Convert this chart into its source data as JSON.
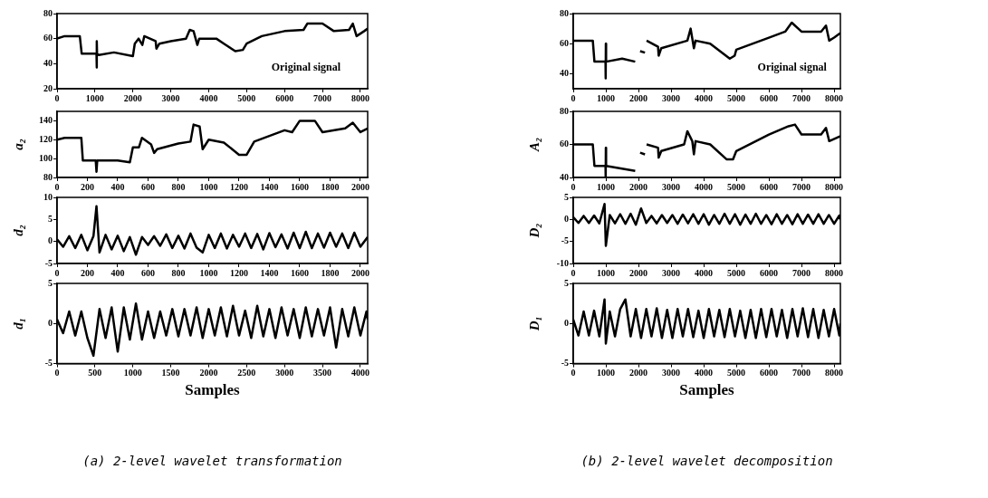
{
  "chart_data": [
    {
      "type": "line",
      "color": "#000000",
      "annotations": [
        "Original signal"
      ],
      "xlim": [
        0,
        8192
      ],
      "ylim": [
        20,
        80
      ],
      "xticks": [
        0,
        1000,
        2000,
        3000,
        4000,
        5000,
        6000,
        7000,
        8000
      ],
      "yticks": [
        20,
        40,
        60,
        80
      ],
      "x": [
        0,
        200,
        600,
        650,
        1000,
        1040,
        1045,
        1050,
        1055,
        1100,
        1500,
        2000,
        2050,
        2150,
        2250,
        2300,
        2600,
        2620,
        2700,
        3000,
        3400,
        3500,
        3600,
        3700,
        3750,
        4200,
        4400,
        4700,
        4900,
        5000,
        5400,
        6000,
        6500,
        6600,
        7000,
        7300,
        7700,
        7800,
        7900,
        8100,
        8192
      ],
      "values": [
        60,
        62,
        62,
        48,
        48,
        48,
        37,
        58,
        48,
        47,
        49,
        46,
        56,
        60,
        55,
        62,
        58,
        52,
        56,
        58,
        60,
        67,
        66,
        55,
        60,
        60,
        56,
        50,
        51,
        56,
        62,
        66,
        67,
        72,
        72,
        66,
        67,
        72,
        62,
        66,
        68
      ]
    },
    {
      "type": "line",
      "color": "#000000",
      "ylabel": "a₂",
      "xlim": [
        0,
        2048
      ],
      "ylim": [
        80,
        150
      ],
      "xticks": [
        0,
        200,
        400,
        600,
        800,
        1000,
        1200,
        1400,
        1600,
        1800,
        2000
      ],
      "yticks": [
        80,
        100,
        120,
        140
      ],
      "x": [
        0,
        50,
        160,
        170,
        255,
        260,
        265,
        400,
        480,
        500,
        540,
        560,
        620,
        640,
        660,
        800,
        880,
        900,
        940,
        960,
        1000,
        1100,
        1200,
        1250,
        1300,
        1500,
        1550,
        1600,
        1700,
        1750,
        1900,
        1950,
        2000,
        2048
      ],
      "values": [
        120,
        122,
        122,
        98,
        98,
        86,
        98,
        98,
        96,
        112,
        112,
        122,
        115,
        106,
        110,
        116,
        118,
        136,
        134,
        110,
        120,
        117,
        104,
        104,
        118,
        130,
        128,
        140,
        140,
        128,
        132,
        138,
        128,
        132
      ]
    },
    {
      "type": "line",
      "color": "#000000",
      "ylabel": "d₂",
      "xlim": [
        0,
        2048
      ],
      "ylim": [
        -5,
        10
      ],
      "xticks": [
        0,
        200,
        400,
        600,
        800,
        1000,
        1200,
        1400,
        1600,
        1800,
        2000
      ],
      "yticks": [
        -5,
        0,
        5,
        10
      ],
      "x": [
        0,
        40,
        80,
        120,
        160,
        200,
        240,
        260,
        280,
        320,
        360,
        400,
        440,
        480,
        520,
        560,
        600,
        640,
        680,
        720,
        760,
        800,
        840,
        880,
        920,
        960,
        1000,
        1040,
        1080,
        1120,
        1160,
        1200,
        1240,
        1280,
        1320,
        1360,
        1400,
        1440,
        1480,
        1520,
        1560,
        1600,
        1640,
        1680,
        1720,
        1760,
        1800,
        1840,
        1880,
        1920,
        1960,
        2000,
        2048
      ],
      "values": [
        0.5,
        -1.2,
        1.2,
        -1.5,
        1.5,
        -2,
        1.2,
        8,
        -2.5,
        1.5,
        -1.8,
        1.3,
        -2.2,
        1,
        -3,
        1,
        -0.8,
        1.2,
        -1,
        1.6,
        -1.5,
        1.3,
        -1.6,
        1.8,
        -1.4,
        -2.5,
        1.5,
        -1.5,
        1.8,
        -1.6,
        1.5,
        -1.2,
        1.8,
        -1.5,
        1.7,
        -1.8,
        1.9,
        -1.3,
        1.6,
        -1.6,
        2,
        -1.5,
        2.2,
        -1.5,
        1.8,
        -1.4,
        2,
        -1.2,
        1.8,
        -1.5,
        2,
        -1.2,
        1
      ]
    },
    {
      "type": "line",
      "color": "#000000",
      "ylabel": "d₁",
      "xlabel": "Samples",
      "annotations": [
        "(a) 2-level wavelet transformation"
      ],
      "xlim": [
        0,
        4096
      ],
      "ylim": [
        -5,
        5
      ],
      "xticks": [
        0,
        500,
        1000,
        1500,
        2000,
        2500,
        3000,
        3500,
        4000
      ],
      "yticks": [
        -5,
        0,
        5
      ],
      "x": [
        0,
        80,
        160,
        240,
        320,
        400,
        480,
        560,
        640,
        720,
        800,
        880,
        960,
        1040,
        1120,
        1200,
        1280,
        1360,
        1440,
        1520,
        1600,
        1680,
        1760,
        1840,
        1920,
        2000,
        2080,
        2160,
        2240,
        2320,
        2400,
        2480,
        2560,
        2640,
        2720,
        2800,
        2880,
        2960,
        3040,
        3120,
        3200,
        3280,
        3360,
        3440,
        3520,
        3600,
        3680,
        3760,
        3840,
        3920,
        4000,
        4080,
        4096
      ],
      "values": [
        0.5,
        -1.2,
        1.5,
        -1.5,
        1.5,
        -1.8,
        -4,
        1.8,
        -1.8,
        2,
        -3.5,
        2,
        -2,
        2.5,
        -2,
        1.5,
        -1.8,
        1.5,
        -1.5,
        1.8,
        -1.6,
        1.8,
        -1.5,
        2,
        -1.8,
        1.8,
        -1.5,
        2,
        -1.6,
        2.2,
        -1.5,
        1.6,
        -1.8,
        2.2,
        -1.6,
        1.8,
        -1.8,
        2,
        -1.5,
        1.8,
        -1.8,
        2,
        -1.6,
        1.8,
        -1.5,
        2,
        -3,
        1.8,
        -1.6,
        2,
        -1.5,
        1.5,
        0.5
      ]
    },
    {
      "type": "line",
      "color": "#000000",
      "annotations": [
        "Original signal"
      ],
      "xlim": [
        0,
        8192
      ],
      "ylim": [
        30,
        80
      ],
      "xticks": [
        0,
        1000,
        2000,
        3000,
        4000,
        5000,
        6000,
        7000,
        8000
      ],
      "yticks": [
        40,
        60,
        80
      ],
      "x": [
        0,
        600,
        650,
        990,
        995,
        1000,
        1005,
        1010,
        1500,
        1900,
        1950,
        2050,
        2200,
        2230,
        2250,
        2600,
        2620,
        2700,
        3500,
        3600,
        3700,
        3750,
        4200,
        4800,
        4950,
        5000,
        6000,
        6500,
        6700,
        7000,
        7600,
        7750,
        7850,
        8000,
        8192
      ],
      "values": [
        62,
        62,
        48,
        48,
        37,
        60,
        48,
        48,
        50,
        48,
        null,
        55,
        54,
        null,
        62,
        58,
        52,
        57,
        62,
        70,
        57,
        62,
        60,
        50,
        52,
        56,
        64,
        68,
        74,
        68,
        68,
        72,
        62,
        64,
        67
      ]
    },
    {
      "type": "line",
      "color": "#000000",
      "ylabel": "A₂",
      "xlim": [
        0,
        8192
      ],
      "ylim": [
        40,
        80
      ],
      "xticks": [
        0,
        1000,
        2000,
        3000,
        4000,
        5000,
        6000,
        7000,
        8000
      ],
      "yticks": [
        40,
        60,
        80
      ],
      "x": [
        0,
        600,
        650,
        990,
        995,
        1000,
        1005,
        1010,
        1900,
        1950,
        2050,
        2200,
        2230,
        2250,
        2600,
        2620,
        2700,
        3400,
        3500,
        3650,
        3700,
        3750,
        4200,
        4700,
        4900,
        5000,
        6000,
        6600,
        6800,
        7000,
        7600,
        7750,
        7850,
        8192
      ],
      "values": [
        60,
        60,
        47,
        47,
        40,
        58,
        47,
        47,
        44,
        null,
        55,
        54,
        null,
        60,
        58,
        52,
        56,
        60,
        68,
        62,
        54,
        62,
        60,
        51,
        51,
        56,
        66,
        71,
        72,
        66,
        66,
        70,
        62,
        65
      ]
    },
    {
      "type": "line",
      "color": "#000000",
      "ylabel": "D₂",
      "xlim": [
        0,
        8192
      ],
      "ylim": [
        -10,
        5
      ],
      "xticks": [
        0,
        1000,
        2000,
        3000,
        4000,
        5000,
        6000,
        7000,
        8000
      ],
      "yticks": [
        -10,
        -5,
        0,
        5
      ],
      "x": [
        0,
        160,
        320,
        480,
        640,
        800,
        960,
        1000,
        1120,
        1280,
        1440,
        1600,
        1760,
        1920,
        2080,
        2240,
        2400,
        2560,
        2720,
        2880,
        3040,
        3200,
        3360,
        3520,
        3680,
        3840,
        4000,
        4160,
        4320,
        4480,
        4640,
        4800,
        4960,
        5120,
        5280,
        5440,
        5600,
        5760,
        5920,
        6080,
        6240,
        6400,
        6560,
        6720,
        6880,
        7040,
        7200,
        7360,
        7520,
        7680,
        7840,
        8000,
        8160,
        8192
      ],
      "values": [
        0.5,
        -0.8,
        0.8,
        -0.8,
        0.9,
        -0.9,
        3.5,
        -6,
        1,
        -0.9,
        1.2,
        -1,
        1.3,
        -1.2,
        2.5,
        -0.8,
        0.8,
        -0.9,
        1,
        -0.8,
        1,
        -1,
        1.1,
        -0.9,
        1.2,
        -1,
        1.2,
        -1.2,
        1,
        -1,
        1.3,
        -1,
        1.2,
        -1.2,
        1.1,
        -1,
        1.3,
        -1,
        1,
        -1.1,
        1.2,
        -1,
        1,
        -1.1,
        1.2,
        -1,
        1.1,
        -1,
        1.2,
        -1,
        1,
        -1,
        0.9,
        0
      ]
    },
    {
      "type": "line",
      "color": "#000000",
      "ylabel": "D₁",
      "xlabel": "Samples",
      "annotations": [
        "(b) 2-level wavelet decomposition"
      ],
      "xlim": [
        0,
        8192
      ],
      "ylim": [
        -5,
        5
      ],
      "xticks": [
        0,
        1000,
        2000,
        3000,
        4000,
        5000,
        6000,
        7000,
        8000
      ],
      "yticks": [
        -5,
        0,
        5
      ],
      "x": [
        0,
        160,
        320,
        480,
        640,
        800,
        960,
        1000,
        1120,
        1280,
        1440,
        1600,
        1760,
        1920,
        2080,
        2240,
        2400,
        2560,
        2720,
        2880,
        3040,
        3200,
        3360,
        3520,
        3680,
        3840,
        4000,
        4160,
        4320,
        4480,
        4640,
        4800,
        4960,
        5120,
        5280,
        5440,
        5600,
        5760,
        5920,
        6080,
        6240,
        6400,
        6560,
        6720,
        6880,
        7040,
        7200,
        7360,
        7520,
        7680,
        7840,
        8000,
        8160,
        8192
      ],
      "values": [
        0.5,
        -1.5,
        1.5,
        -1.5,
        1.6,
        -1.6,
        3,
        -2.5,
        1.5,
        -1.6,
        1.8,
        3,
        -1.6,
        1.8,
        -1.8,
        1.8,
        -1.6,
        1.9,
        -1.8,
        1.7,
        -1.8,
        1.8,
        -1.6,
        1.8,
        -1.7,
        1.6,
        -1.8,
        1.8,
        -1.6,
        1.7,
        -1.7,
        1.8,
        -1.6,
        1.6,
        -1.8,
        1.7,
        -1.8,
        1.8,
        -1.7,
        1.8,
        -1.6,
        1.7,
        -1.8,
        1.8,
        -1.6,
        1.9,
        -1.7,
        1.8,
        -1.8,
        1.7,
        -1.6,
        1.8,
        -1.5,
        0
      ]
    }
  ]
}
